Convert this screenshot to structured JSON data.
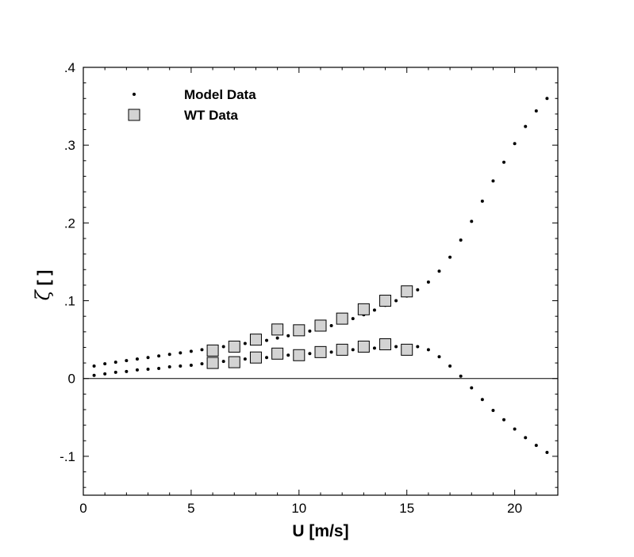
{
  "chart_data": {
    "type": "scatter",
    "title": "",
    "xlabel": "U [m/s]",
    "ylabel_symbol": "ζ",
    "ylabel_unit": "[ ]",
    "xlim": [
      0,
      22
    ],
    "ylim": [
      -0.15,
      0.4
    ],
    "x_ticks": [
      0,
      5,
      10,
      15,
      20
    ],
    "x_tick_labels": [
      "0",
      "5",
      "10",
      "15",
      "20"
    ],
    "y_ticks": [
      -0.1,
      0,
      0.1,
      0.2,
      0.3,
      0.4
    ],
    "y_tick_labels": [
      "-.1",
      "0",
      ".1",
      ".2",
      ".3",
      ".4"
    ],
    "zero_line": true,
    "grid": false,
    "legend_position": "top-left",
    "series": [
      {
        "name": "Model Data",
        "marker": "dot",
        "color": "#000000",
        "branches": [
          {
            "x": [
              0.5,
              1.0,
              1.5,
              2.0,
              2.5,
              3.0,
              3.5,
              4.0,
              4.5,
              5.0,
              5.5,
              6.0,
              6.5,
              7.0,
              7.5,
              8.0,
              8.5,
              9.0,
              9.5,
              10.0,
              10.5,
              11.0,
              11.5,
              12.0,
              12.5,
              13.0,
              13.5,
              14.0,
              14.5,
              15.0,
              15.5,
              16.0,
              16.5,
              17.0,
              17.5,
              18.0,
              18.5,
              19.0,
              19.5,
              20.0,
              20.5,
              21.0,
              21.5
            ],
            "y": [
              0.016,
              0.019,
              0.021,
              0.023,
              0.025,
              0.027,
              0.029,
              0.031,
              0.033,
              0.035,
              0.037,
              0.039,
              0.041,
              0.043,
              0.045,
              0.047,
              0.049,
              0.052,
              0.055,
              0.058,
              0.061,
              0.064,
              0.068,
              0.072,
              0.077,
              0.082,
              0.088,
              0.094,
              0.1,
              0.106,
              0.114,
              0.124,
              0.138,
              0.156,
              0.178,
              0.202,
              0.228,
              0.254,
              0.278,
              0.302,
              0.324,
              0.344,
              0.36
            ]
          },
          {
            "x": [
              0.5,
              1.0,
              1.5,
              2.0,
              2.5,
              3.0,
              3.5,
              4.0,
              4.5,
              5.0,
              5.5,
              6.0,
              6.5,
              7.0,
              7.5,
              8.0,
              8.5,
              9.0,
              9.5,
              10.0,
              10.5,
              11.0,
              11.5,
              12.0,
              12.5,
              13.0,
              13.5,
              14.0,
              14.5,
              15.0,
              15.5,
              16.0,
              16.5,
              17.0,
              17.5,
              18.0,
              18.5,
              19.0,
              19.5,
              20.0,
              20.5,
              21.0,
              21.5
            ],
            "y": [
              0.004,
              0.006,
              0.008,
              0.009,
              0.011,
              0.012,
              0.013,
              0.015,
              0.016,
              0.017,
              0.019,
              0.02,
              0.022,
              0.023,
              0.025,
              0.026,
              0.027,
              0.029,
              0.03,
              0.031,
              0.032,
              0.033,
              0.034,
              0.036,
              0.037,
              0.038,
              0.039,
              0.04,
              0.041,
              0.042,
              0.041,
              0.037,
              0.028,
              0.016,
              0.003,
              -0.012,
              -0.027,
              -0.041,
              -0.053,
              -0.065,
              -0.076,
              -0.086,
              -0.095
            ]
          }
        ]
      },
      {
        "name": "WT Data",
        "marker": "square",
        "color": "#d3d3d3",
        "branches": [
          {
            "x": [
              6,
              7,
              8,
              9,
              10,
              11,
              12,
              13,
              14,
              15
            ],
            "y": [
              0.036,
              0.041,
              0.05,
              0.063,
              0.062,
              0.068,
              0.077,
              0.089,
              0.1,
              0.112
            ]
          },
          {
            "x": [
              6,
              7,
              8,
              9,
              10,
              11,
              12,
              13,
              14,
              15
            ],
            "y": [
              0.02,
              0.021,
              0.027,
              0.032,
              0.03,
              0.034,
              0.037,
              0.041,
              0.044,
              0.037
            ]
          }
        ]
      }
    ]
  }
}
